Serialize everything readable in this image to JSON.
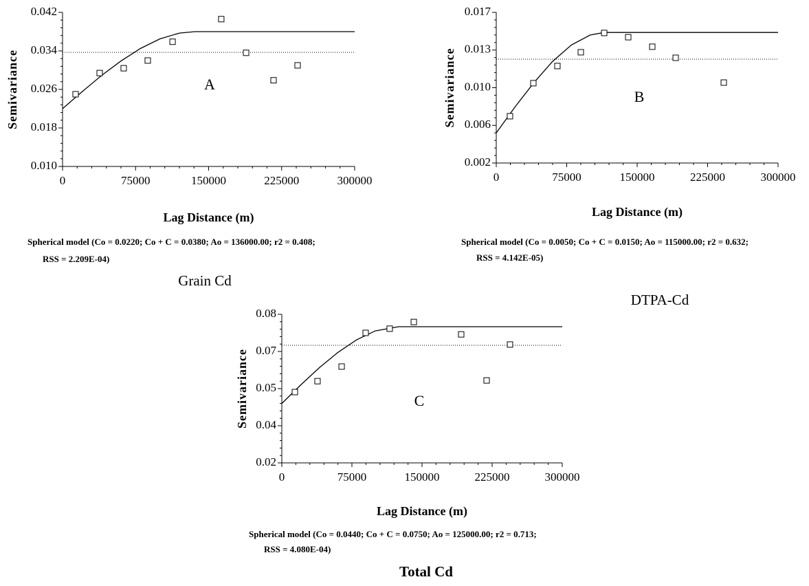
{
  "chart_data": [
    {
      "type": "scatter",
      "panel_label": "A",
      "subtitle": "Grain Cd",
      "ylabel": "Semivariance",
      "xlabel": "Lag Distance (m)",
      "caption": [
        "Spherical model (Co = 0.0220; Co + C = 0.0380; Ao = 136000.00; r2 = 0.408;",
        "RSS = 2.209E-04)"
      ],
      "x": [
        13400,
        38100,
        62800,
        87500,
        113000,
        163000,
        188500,
        216700,
        241400
      ],
      "values": [
        0.025,
        0.0294,
        0.0304,
        0.032,
        0.0359,
        0.0406,
        0.0336,
        0.0279,
        0.031
      ],
      "model": {
        "x": [
          0,
          20000,
          40000,
          60000,
          80000,
          100000,
          120000,
          136000,
          300000
        ],
        "values": [
          0.022,
          0.0255,
          0.0289,
          0.0319,
          0.0345,
          0.0365,
          0.0377,
          0.038,
          0.038
        ]
      },
      "reference_line": 0.0337,
      "color": "#000000",
      "xlim": [
        0,
        300000
      ],
      "ylim": [
        0.01,
        0.042
      ],
      "xticks": [
        0,
        75000,
        150000,
        225000,
        300000
      ],
      "yticks": [
        {
          "value": 0.01,
          "label": "0.010"
        },
        0.018,
        0.026,
        0.034,
        0.042
      ]
    },
    {
      "type": "scatter",
      "panel_label": "B",
      "subtitle": "DTPA-Cd",
      "ylabel": "Semivariance",
      "xlabel": "Lag Distance (m)",
      "caption": [
        "Spherical model (Co = 0.0050; Co + C = 0.0150; Ao = 115000.00; r2 = 0.632;",
        "RSS = 4.142E-05)"
      ],
      "x": [
        14600,
        39500,
        65100,
        90000,
        114900,
        140500,
        166100,
        191000,
        242200
      ],
      "values": [
        0.00666,
        0.00995,
        0.01166,
        0.01303,
        0.01495,
        0.01453,
        0.01358,
        0.01248,
        0.01001
      ],
      "model": {
        "x": [
          0,
          20000,
          40000,
          60000,
          80000,
          100000,
          115000,
          300000
        ],
        "values": [
          0.005,
          0.00758,
          0.01,
          0.01212,
          0.01375,
          0.01475,
          0.015,
          0.015
        ]
      },
      "reference_line": 0.01234,
      "color": "#000000",
      "xlim": [
        0,
        300000
      ],
      "ylim": [
        0.002,
        0.017
      ],
      "xticks": [
        0,
        75000,
        150000,
        225000,
        300000
      ],
      "yticks": [
        0.002,
        {
          "value": 0.00575,
          "label": "0.006"
        },
        {
          "value": 0.0095,
          "label": "0.010"
        },
        {
          "value": 0.01325,
          "label": "0.013"
        },
        0.017
      ]
    },
    {
      "type": "scatter",
      "panel_label": "C",
      "subtitle": "Total Cd",
      "ylabel": "Semivariance",
      "xlabel": "Lag Distance (m)",
      "caption": [
        "Spherical model (Co = 0.0440; Co + C = 0.0750; Ao = 125000.00; r2 = 0.713;",
        "RSS = 4.080E-04)"
      ],
      "x": [
        14000,
        38200,
        64000,
        89700,
        115400,
        141200,
        191900,
        219100,
        244100
      ],
      "values": [
        0.0486,
        0.053,
        0.0589,
        0.0725,
        0.0742,
        0.0769,
        0.0719,
        0.0533,
        0.0678
      ],
      "model": {
        "x": [
          0,
          20000,
          40000,
          60000,
          80000,
          100000,
          125000,
          300000
        ],
        "values": [
          0.044,
          0.0514,
          0.0584,
          0.0646,
          0.0697,
          0.0733,
          0.075,
          0.075
        ]
      },
      "reference_line": 0.0675,
      "color": "#000000",
      "xlim": [
        0,
        300000
      ],
      "ylim": [
        0.02,
        0.08
      ],
      "xticks": [
        0,
        75000,
        150000,
        225000,
        300000
      ],
      "yticks": [
        0.02,
        {
          "value": 0.035,
          "label": "0.04"
        },
        0.05,
        {
          "value": 0.065,
          "label": "0.07"
        },
        0.08
      ]
    }
  ]
}
